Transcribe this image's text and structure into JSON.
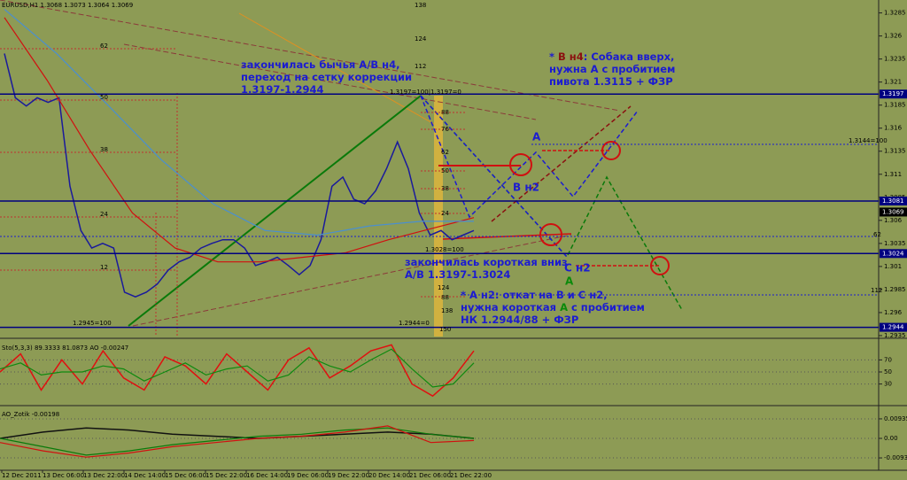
{
  "chart_data": [
    {
      "type": "line",
      "title": "EURUSD,H1 1.3068 1.3073 1.3064 1.3069",
      "series": [
        {
          "color": "#1a1a9c",
          "values": [
            1.3241,
            1.3193,
            1.3184,
            1.3193,
            1.3188,
            1.3193,
            1.3097,
            1.3049,
            1.303,
            1.3035,
            1.303,
            1.2982,
            1.2977,
            1.2982,
            1.2991,
            1.3006,
            1.3015,
            1.302,
            1.303,
            1.3035,
            1.3039,
            1.3039,
            1.303,
            1.3011,
            1.3015,
            1.302,
            1.3011,
            1.3001,
            1.3011,
            1.3039,
            1.3097,
            1.3107,
            1.3083,
            1.3078,
            1.3092,
            1.3116,
            1.3145,
            1.3116,
            1.3068,
            1.3044,
            1.3049,
            1.3039,
            1.3044,
            1.3049
          ]
        },
        {
          "color": "#d01010",
          "values": [
            1.328,
            1.3212,
            1.3136,
            1.3068,
            1.303,
            1.3015,
            1.3015,
            1.302,
            1.3025,
            1.3039,
            1.3051,
            1.3063
          ]
        },
        {
          "color": "#4a8fd0",
          "values": [
            1.3289,
            1.3241,
            1.3184,
            1.3126,
            1.3078,
            1.3049,
            1.3044,
            1.3054,
            1.3059,
            1.3059
          ]
        }
      ],
      "ylim": [
        1.2934,
        1.3299
      ],
      "yticks": [
        1.3285,
        1.326,
        1.3235,
        1.321,
        1.3185,
        1.316,
        1.3135,
        1.311,
        1.3085,
        1.306,
        1.3035,
        1.301,
        1.2985,
        1.296,
        1.2935
      ],
      "levels": [
        1.3197,
        1.3081,
        1.3024,
        1.2944
      ],
      "last_price": 1.3069,
      "time_labels": [
        "12 Dec 2011",
        "13 Dec 06:00",
        "13 Dec 22:00",
        "14 Dec 14:00",
        "15 Dec 06:00",
        "15 Dec 22:00",
        "16 Dec 14:00",
        "19 Dec 06:00",
        "19 Dec 22:00",
        "20 Dec 14:00",
        "21 Dec 06:00",
        "21 Dec 22:00"
      ],
      "annotations": [
        {
          "lines": [
            [
              {
                "text": "закончилась бычья A/B н4,",
                "color": "#1c1cd0"
              }
            ],
            [
              {
                "text": "переход на сетку коррекции",
                "color": "#1c1cd0"
              }
            ],
            [
              {
                "text": "1.3197-1.2944",
                "color": "#1c1cd0"
              }
            ]
          ]
        },
        {
          "lines": [
            [
              {
                "text": "* ",
                "color": "#1c1cd0"
              },
              {
                "text": "B н4",
                "color": "#8b1010"
              },
              {
                "text": ": Собака вверх,",
                "color": "#1c1cd0"
              }
            ],
            [
              {
                "text": "нужна А с пробитием",
                "color": "#1c1cd0"
              }
            ],
            [
              {
                "text": "пивота 1.3115 + ФЗР",
                "color": "#1c1cd0"
              }
            ]
          ]
        },
        {
          "lines": [
            [
              {
                "text": "закончилась короткая вниз",
                "color": "#1c1cd0"
              }
            ],
            [
              {
                "text": "A/B 1.3197-1.3024",
                "color": "#1c1cd0"
              }
            ]
          ]
        },
        {
          "lines": [
            [
              {
                "text": "* А н2: откат на В и С н2,",
                "color": "#1c1cd0"
              }
            ],
            [
              {
                "text": "нужна короткая ",
                "color": "#1c1cd0"
              },
              {
                "text": "A",
                "color": "#0a8a0a"
              },
              {
                "text": " с пробитием",
                "color": "#1c1cd0"
              }
            ],
            [
              {
                "text": "НК 1.2944/88 + ФЗР",
                "color": "#1c1cd0"
              }
            ]
          ]
        }
      ],
      "letters": [
        {
          "text": "A",
          "color": "#1c1cd0"
        },
        {
          "text": "B н2",
          "color": "#1c1cd0"
        },
        {
          "text": "C н2",
          "color": "#1c1cd0"
        },
        {
          "text": "A",
          "color": "#0a8a0a"
        }
      ],
      "fib_labels": [
        "62",
        "50",
        "38",
        "24",
        "12",
        "138",
        "124",
        "112",
        "88",
        "76",
        "62",
        "50",
        "38",
        "24",
        "124",
        "88",
        "138",
        "150",
        "62",
        "112",
        "1.3197=100|1.3197=0",
        "1.3144=100",
        "1.3028=100",
        "1.2945=100",
        "1.2944=0"
      ]
    },
    {
      "type": "line",
      "title": "Sto(5,3,3) 89.3333 81.0873 AO -0.00247",
      "series": [
        {
          "color": "#e01010",
          "values": [
            50,
            80,
            20,
            70,
            30,
            85,
            40,
            20,
            75,
            60,
            30,
            80,
            50,
            20,
            70,
            90,
            40,
            60,
            85,
            95,
            30,
            10,
            40,
            85
          ]
        },
        {
          "color": "#108a10",
          "values": [
            55,
            65,
            45,
            50,
            50,
            60,
            55,
            35,
            50,
            65,
            45,
            55,
            60,
            35,
            45,
            75,
            60,
            50,
            70,
            88,
            55,
            25,
            30,
            65
          ]
        }
      ],
      "ylim": [
        0,
        100
      ],
      "yticks": [
        30,
        50,
        70
      ]
    },
    {
      "type": "line",
      "title": "AO_Zotik -0.00198",
      "series": [
        {
          "color": "#111111",
          "values": [
            0,
            0.003,
            0.005,
            0.004,
            0.002,
            0.001,
            0,
            0.001,
            0.002,
            0.003,
            0.002,
            0
          ]
        },
        {
          "color": "#0a7a0a",
          "values": [
            0,
            -0.004,
            -0.008,
            -0.006,
            -0.003,
            -0.001,
            0.001,
            0.002,
            0.004,
            0.005,
            0.002,
            0
          ]
        },
        {
          "color": "#d01010",
          "values": [
            -0.002,
            -0.006,
            -0.009,
            -0.007,
            -0.004,
            -0.002,
            0,
            0.001,
            0.003,
            0.006,
            -0.002,
            -0.001
          ]
        }
      ],
      "ylim": [
        -0.014,
        0.014
      ],
      "yticks": [
        0.00935,
        {
          "value": 0,
          "label": "0.00"
        },
        -0.00935
      ]
    }
  ]
}
